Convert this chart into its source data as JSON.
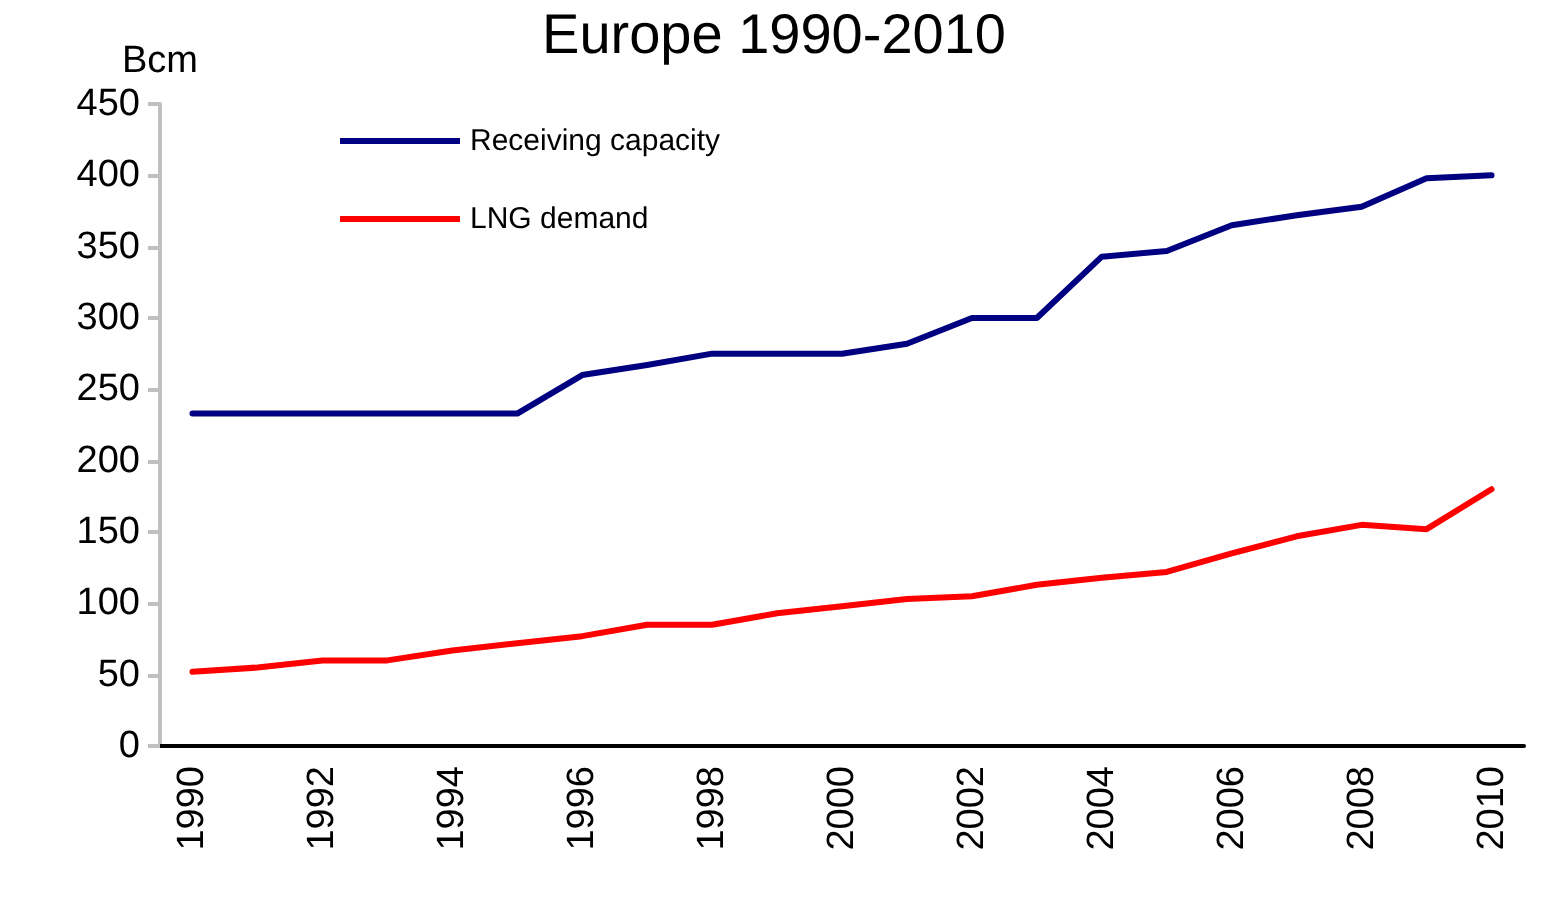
{
  "chart_data": {
    "type": "line",
    "title": "Europe 1990-2010",
    "ylabel": "Bcm",
    "categories": [
      "1990",
      null,
      "1992",
      null,
      "1994",
      null,
      "1996",
      null,
      "1998",
      null,
      "2000",
      null,
      "2002",
      null,
      "2004",
      null,
      "2006",
      null,
      "2008",
      null,
      "2010"
    ],
    "series": [
      {
        "name": "Receiving capacity",
        "color": "#000080",
        "values": [
          233,
          233,
          233,
          233,
          233,
          233,
          260,
          267,
          275,
          275,
          275,
          282,
          300,
          300,
          343,
          347,
          365,
          372,
          378,
          398,
          400
        ]
      },
      {
        "name": "LNG demand",
        "color": "#ff0000",
        "values": [
          52,
          55,
          60,
          60,
          67,
          72,
          77,
          85,
          85,
          93,
          98,
          103,
          105,
          113,
          118,
          122,
          135,
          147,
          155,
          152,
          180
        ]
      }
    ],
    "ylim": [
      0,
      450
    ],
    "yticks": [
      0,
      50,
      100,
      150,
      200,
      250,
      300,
      350,
      400,
      450
    ],
    "grid": false,
    "legend": "top left",
    "marker": "none",
    "line_style": "solid"
  }
}
